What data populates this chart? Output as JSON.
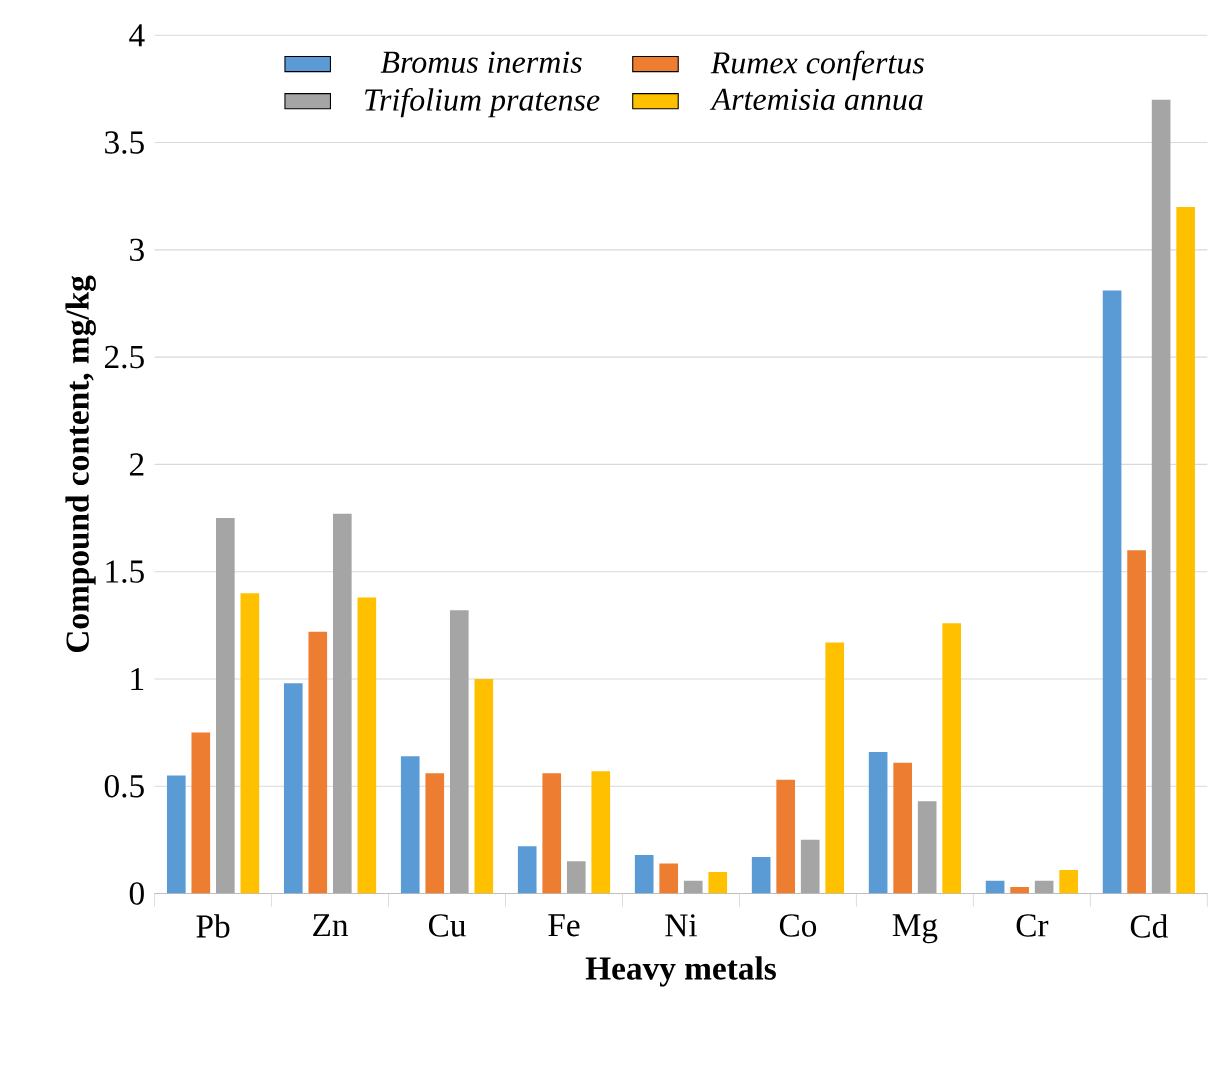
{
  "chart_data": {
    "type": "bar",
    "xlabel": "Heavy metals",
    "ylabel": "Compound content, mg/kg",
    "categories": [
      "Pb",
      "Zn",
      "Cu",
      "Fe",
      "Ni",
      "Co",
      "Mg",
      "Cr",
      "Cd"
    ],
    "series": [
      {
        "name": "Bromus inermis",
        "color": "#5b9bd5",
        "values": [
          0.55,
          0.98,
          0.64,
          0.22,
          0.18,
          0.17,
          0.66,
          0.06,
          2.81
        ]
      },
      {
        "name": "Rumex confertus",
        "color": "#ed7d31",
        "values": [
          0.75,
          1.22,
          0.56,
          0.56,
          0.14,
          0.53,
          0.61,
          0.03,
          1.6
        ]
      },
      {
        "name": "Trifolium pratense",
        "color": "#a5a5a5",
        "values": [
          1.75,
          1.77,
          1.32,
          0.15,
          0.06,
          0.25,
          0.43,
          0.06,
          3.7
        ]
      },
      {
        "name": "Artemisia annua",
        "color": "#ffc000",
        "values": [
          1.4,
          1.38,
          1.0,
          0.57,
          0.1,
          1.17,
          1.26,
          0.11,
          3.2
        ]
      }
    ],
    "ylim": [
      0,
      4
    ],
    "yticks": [
      0,
      0.5,
      1,
      1.5,
      2,
      2.5,
      3,
      3.5,
      4
    ],
    "grid": "y",
    "legend": "top"
  }
}
